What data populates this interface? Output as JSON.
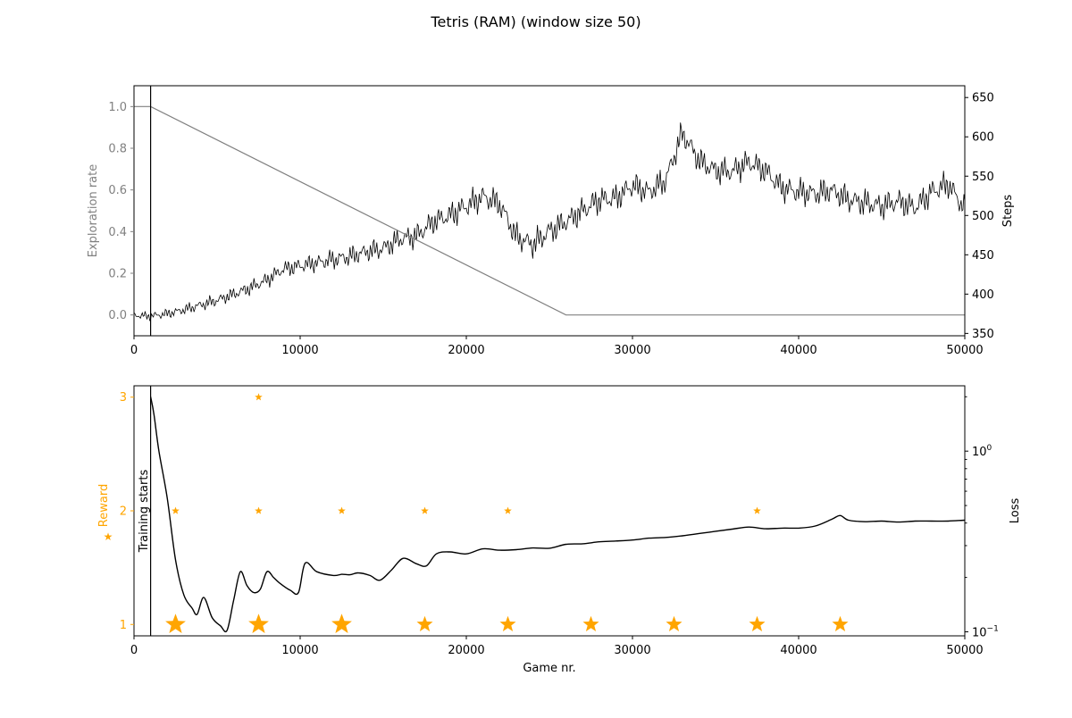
{
  "figure": {
    "title": "Tetris (RAM) (window size 50)"
  },
  "colors": {
    "exploration": "#808080",
    "steps": "#000000",
    "reward": "#ffa500",
    "loss": "#000000",
    "axis": "#000000"
  },
  "chart_data": [
    {
      "type": "line",
      "panel": "top",
      "xlim": [
        0,
        50000
      ],
      "x_ticks": [
        0,
        10000,
        20000,
        30000,
        40000,
        50000
      ],
      "left_axis": {
        "label": "Exploration rate",
        "ylim": [
          -0.1,
          1.1
        ],
        "ticks": [
          "0.0",
          "0.2",
          "0.4",
          "0.6",
          "0.8",
          "1.0"
        ],
        "tick_values": [
          0.0,
          0.2,
          0.4,
          0.6,
          0.8,
          1.0
        ]
      },
      "right_axis": {
        "label": "Steps",
        "ylim": [
          347,
          665
        ],
        "ticks": [
          "350",
          "400",
          "450",
          "500",
          "550",
          "600",
          "650"
        ],
        "tick_values": [
          350,
          400,
          450,
          500,
          550,
          600,
          650
        ]
      },
      "training_start": 1000,
      "series": [
        {
          "axis": "left",
          "x": [
            0,
            1000,
            26000,
            50000
          ],
          "values": [
            1.0,
            1.0,
            0.0,
            0.0
          ]
        },
        {
          "axis": "right",
          "x": [
            0,
            1000,
            2000,
            3000,
            4000,
            5000,
            6000,
            7000,
            8000,
            9000,
            10000,
            11000,
            12000,
            13000,
            14000,
            15000,
            16000,
            17000,
            18000,
            19000,
            20000,
            21000,
            22000,
            23000,
            24000,
            25000,
            26000,
            27000,
            28000,
            29000,
            30000,
            31000,
            32000,
            33000,
            34000,
            35000,
            36000,
            37000,
            38000,
            39000,
            40000,
            41000,
            42000,
            43000,
            44000,
            45000,
            46000,
            47000,
            48000,
            49000,
            50000
          ],
          "values": [
            373,
            372,
            375,
            380,
            386,
            392,
            400,
            408,
            418,
            432,
            436,
            440,
            444,
            448,
            454,
            458,
            470,
            474,
            492,
            500,
            512,
            524,
            515,
            473,
            463,
            480,
            492,
            506,
            520,
            522,
            538,
            530,
            545,
            605,
            570,
            557,
            556,
            568,
            557,
            535,
            530,
            528,
            532,
            520,
            516,
            512,
            518,
            510,
            530,
            540,
            508
          ]
        }
      ]
    },
    {
      "type": "scatter",
      "panel": "bottom",
      "xlabel": "Game nr.",
      "xlim": [
        0,
        50000
      ],
      "x_ticks": [
        0,
        10000,
        20000,
        30000,
        40000,
        50000
      ],
      "left_axis": {
        "label": "Reward",
        "ylim": [
          0.9,
          3.1
        ],
        "ticks": [
          "1",
          "2",
          "3"
        ],
        "tick_values": [
          1,
          2,
          3
        ]
      },
      "right_axis": {
        "label": "Loss",
        "scale": "log",
        "ylim": [
          0.095,
          2.3
        ],
        "ticks": [
          "10^-1",
          "10^0"
        ],
        "tick_values": [
          0.1,
          1.0
        ]
      },
      "annotation": "Training starts",
      "training_start": 1000,
      "reward_points": [
        {
          "x": 2500,
          "y": 1,
          "size": "large"
        },
        {
          "x": 7500,
          "y": 1,
          "size": "large"
        },
        {
          "x": 12500,
          "y": 1,
          "size": "large"
        },
        {
          "x": 17500,
          "y": 1,
          "size": "medium"
        },
        {
          "x": 22500,
          "y": 1,
          "size": "medium"
        },
        {
          "x": 27500,
          "y": 1,
          "size": "medium"
        },
        {
          "x": 32500,
          "y": 1,
          "size": "medium"
        },
        {
          "x": 37500,
          "y": 1,
          "size": "medium"
        },
        {
          "x": 42500,
          "y": 1,
          "size": "medium"
        },
        {
          "x": 2500,
          "y": 2,
          "size": "small"
        },
        {
          "x": 7500,
          "y": 2,
          "size": "small"
        },
        {
          "x": 12500,
          "y": 2,
          "size": "small"
        },
        {
          "x": 17500,
          "y": 2,
          "size": "small"
        },
        {
          "x": 22500,
          "y": 2,
          "size": "small"
        },
        {
          "x": 37500,
          "y": 2,
          "size": "small"
        },
        {
          "x": 7500,
          "y": 3,
          "size": "small"
        }
      ],
      "loss_series": {
        "x": [
          1000,
          1200,
          1500,
          2000,
          2500,
          3000,
          3500,
          3800,
          4200,
          4700,
          5200,
          5600,
          6000,
          6400,
          6800,
          7200,
          7600,
          8000,
          8400,
          8800,
          9400,
          9900,
          10300,
          11000,
          12000,
          12500,
          13000,
          13500,
          14200,
          14800,
          15500,
          16200,
          17000,
          17600,
          18200,
          19000,
          20000,
          21000,
          22000,
          23000,
          24000,
          25000,
          26000,
          27000,
          28000,
          29000,
          30000,
          31000,
          32000,
          33000,
          34000,
          35000,
          36000,
          37000,
          38000,
          39000,
          40000,
          41000,
          42000,
          42500,
          43000,
          44000,
          45000,
          46000,
          47000,
          48000,
          49000,
          50000
        ],
        "values": [
          2.0,
          1.6,
          1.0,
          0.55,
          0.25,
          0.16,
          0.135,
          0.125,
          0.155,
          0.12,
          0.108,
          0.102,
          0.15,
          0.215,
          0.18,
          0.165,
          0.172,
          0.215,
          0.2,
          0.185,
          0.17,
          0.165,
          0.24,
          0.215,
          0.205,
          0.208,
          0.207,
          0.212,
          0.205,
          0.193,
          0.22,
          0.255,
          0.238,
          0.232,
          0.27,
          0.277,
          0.27,
          0.288,
          0.283,
          0.285,
          0.291,
          0.29,
          0.305,
          0.307,
          0.315,
          0.318,
          0.322,
          0.33,
          0.333,
          0.34,
          0.35,
          0.36,
          0.37,
          0.38,
          0.372,
          0.375,
          0.375,
          0.385,
          0.42,
          0.44,
          0.415,
          0.407,
          0.41,
          0.405,
          0.41,
          0.41,
          0.41,
          0.415
        ]
      }
    }
  ]
}
